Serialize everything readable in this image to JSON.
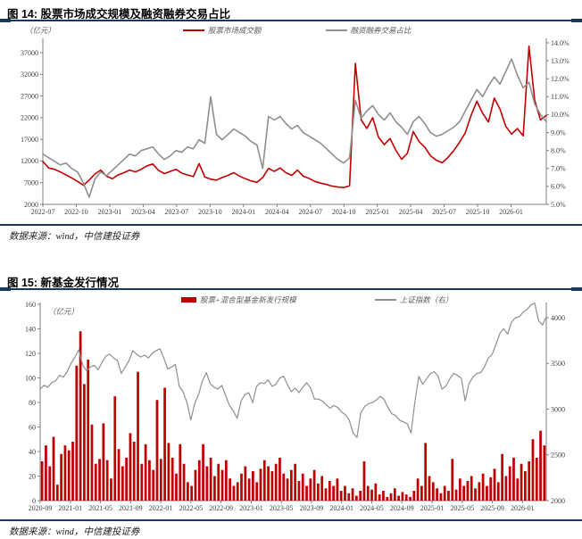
{
  "figure14": {
    "title": "图 14: 股票市场成交规模及融资融券交易占比",
    "source": "数据来源：wind，中信建投证券"
  },
  "figure15": {
    "title": "图 15: 新基金发行情况",
    "source": "数据来源：wind，中信建投证券"
  },
  "colors": {
    "accent_rule": "#17375E",
    "series_red": "#C00000",
    "series_gray": "#8F8F8F",
    "axis": "#7F7F7F"
  },
  "chart_data": [
    {
      "id": "chart14",
      "type": "line",
      "title": "股票市场成交规模及融资融券交易占比",
      "unit_label": "（亿元）",
      "grid": false,
      "legend_position": "top",
      "x_tick_labels": [
        "2022-07",
        "2022-10",
        "2023-01",
        "2023-04",
        "2023-07",
        "2023-10",
        "2024-01",
        "2024-04",
        "2024-07",
        "2024-10",
        "2025-01",
        "2025-04",
        "2025-07",
        "2025-10",
        "2026-01"
      ],
      "y_left": {
        "ticks": [
          2000,
          7000,
          12000,
          17000,
          22000,
          27000,
          32000,
          37000
        ],
        "range": [
          2000,
          37000
        ]
      },
      "y_right": {
        "ticks": [
          5,
          6,
          7,
          8,
          9,
          10,
          11,
          12,
          13,
          14
        ],
        "tick_labels": [
          "5.0%",
          "6.0%",
          "7.0%",
          "8.0%",
          "9.0%",
          "10.0%",
          "11.0%",
          "12.0%",
          "13.0%",
          "14.0%"
        ],
        "range": [
          5,
          14
        ]
      },
      "series": [
        {
          "name": "股票市场成交额",
          "axis": "left",
          "type": "line",
          "color": "#C00000",
          "width": 1.6,
          "values": [
            11900,
            10400,
            10100,
            9500,
            8800,
            8100,
            7300,
            6400,
            7600,
            9000,
            9900,
            8500,
            7900,
            8800,
            9300,
            9900,
            9500,
            10100,
            10900,
            11300,
            9800,
            9100,
            9600,
            10100,
            9200,
            8800,
            8400,
            11400,
            8300,
            7800,
            7600,
            8200,
            8700,
            9300,
            8500,
            7900,
            7400,
            7100,
            8200,
            10300,
            9600,
            10400,
            9300,
            8700,
            9900,
            8500,
            8000,
            7300,
            6900,
            6600,
            6200,
            6000,
            5900,
            6300,
            34500,
            21500,
            19500,
            22000,
            17500,
            15800,
            17200,
            14500,
            12400,
            13800,
            18800,
            16500,
            15200,
            13200,
            12200,
            11600,
            12800,
            14400,
            16300,
            18500,
            22500,
            25800,
            23000,
            21000,
            26500,
            24000,
            20000,
            18200,
            19500,
            17800,
            38500,
            26000,
            21500,
            22500
          ]
        },
        {
          "name": "融资融券交易占比",
          "axis": "right",
          "type": "line",
          "color": "#8F8F8F",
          "width": 1.6,
          "values": [
            7.8,
            7.6,
            7.4,
            7.2,
            7.3,
            7.0,
            6.8,
            6.2,
            5.4,
            6.4,
            6.8,
            6.6,
            6.9,
            7.2,
            7.5,
            7.8,
            7.7,
            8.0,
            8.1,
            8.2,
            7.8,
            7.5,
            7.7,
            8.0,
            7.9,
            8.2,
            8.1,
            8.6,
            8.4,
            11.0,
            8.9,
            8.6,
            8.9,
            9.2,
            9.0,
            8.8,
            8.5,
            8.3,
            7.0,
            9.9,
            9.7,
            9.9,
            9.5,
            9.2,
            9.4,
            9.0,
            8.8,
            8.6,
            8.4,
            8.1,
            7.8,
            7.5,
            7.3,
            7.6,
            10.8,
            9.8,
            10.2,
            10.5,
            10.0,
            9.7,
            10.1,
            9.6,
            9.3,
            8.9,
            9.6,
            9.9,
            9.5,
            9.0,
            8.8,
            8.9,
            9.1,
            9.3,
            9.6,
            10.2,
            10.8,
            11.4,
            11.0,
            11.6,
            12.1,
            11.7,
            12.4,
            13.1,
            12.2,
            11.5,
            11.8,
            10.6,
            10.0,
            9.6
          ]
        }
      ]
    },
    {
      "id": "chart15",
      "type": "bar",
      "title": "新基金发行情况",
      "unit_label": "（亿元）",
      "grid": false,
      "legend_position": "top",
      "x_tick_labels": [
        "2020-09",
        "2021-01",
        "2021-05",
        "2021-09",
        "2022-01",
        "2022-05",
        "2022-09",
        "2023-01",
        "2023-05",
        "2023-09",
        "2024-01",
        "2024-05",
        "2024-09",
        "2025-01",
        "2025-05",
        "2025-09",
        "2026-01"
      ],
      "y_left": {
        "ticks": [
          0,
          20,
          40,
          60,
          80,
          100,
          120,
          140,
          160
        ],
        "range": [
          0,
          160
        ]
      },
      "y_right": {
        "ticks": [
          2000,
          2500,
          3000,
          3500,
          4000
        ],
        "range": [
          2000,
          4150
        ]
      },
      "series": [
        {
          "name": "股票+混合型基金新发行规模",
          "axis": "left",
          "type": "bar",
          "color": "#C00000",
          "values": [
            32,
            45,
            28,
            52,
            13,
            38,
            45,
            41,
            48,
            110,
            138,
            95,
            115,
            62,
            30,
            34,
            63,
            33,
            18,
            85,
            42,
            28,
            35,
            55,
            48,
            105,
            30,
            46,
            33,
            25,
            82,
            34,
            92,
            47,
            35,
            22,
            46,
            30,
            15,
            12,
            25,
            33,
            46,
            28,
            35,
            20,
            30,
            25,
            33,
            18,
            12,
            15,
            22,
            28,
            18,
            24,
            15,
            26,
            33,
            28,
            24,
            30,
            35,
            22,
            18,
            25,
            30,
            16,
            22,
            12,
            18,
            25,
            14,
            20,
            10,
            16,
            12,
            18,
            8,
            12,
            6,
            10,
            4,
            8,
            32,
            12,
            9,
            14,
            5,
            8,
            3,
            6,
            10,
            4,
            7,
            5,
            3,
            8,
            18,
            12,
            47,
            20,
            15,
            10,
            6,
            12,
            8,
            34,
            9,
            18,
            12,
            16,
            20,
            10,
            15,
            22,
            12,
            19,
            26,
            15,
            38,
            20,
            28,
            35,
            18,
            30,
            24,
            32,
            50,
            35,
            57,
            45
          ]
        },
        {
          "name": "上证指数（右）",
          "axis": "right",
          "type": "line",
          "color": "#8F8F8F",
          "width": 1.2,
          "values": [
            3220,
            3260,
            3240,
            3290,
            3310,
            3370,
            3350,
            3410,
            3500,
            3570,
            3650,
            3480,
            3420,
            3460,
            3480,
            3430,
            3510,
            3580,
            3600,
            3560,
            3530,
            3390,
            3460,
            3530,
            3640,
            3600,
            3570,
            3590,
            3560,
            3610,
            3640,
            3660,
            3560,
            3440,
            3460,
            3490,
            3250,
            3190,
            3070,
            2880,
            3060,
            3160,
            3310,
            3400,
            3280,
            3240,
            3220,
            3260,
            3150,
            3040,
            2980,
            2900,
            3090,
            3160,
            3180,
            3070,
            3250,
            3290,
            3280,
            3320,
            3250,
            3270,
            3340,
            3360,
            3270,
            3190,
            3230,
            3180,
            3240,
            3290,
            3230,
            3110,
            3110,
            3090,
            3050,
            3010,
            3040,
            3020,
            2970,
            2940,
            2880,
            2740,
            2690,
            2960,
            3030,
            3060,
            3070,
            3100,
            3140,
            3110,
            3020,
            2950,
            2930,
            2880,
            2860,
            2840,
            2740,
            3080,
            3360,
            3270,
            3330,
            3390,
            3410,
            3360,
            3220,
            3250,
            3330,
            3390,
            3370,
            3340,
            3090,
            3280,
            3350,
            3390,
            3400,
            3460,
            3560,
            3600,
            3710,
            3830,
            3880,
            3820,
            3950,
            4000,
            4010,
            4060,
            4090,
            4140,
            4160,
            3970,
            3920,
            4010
          ]
        }
      ]
    }
  ]
}
